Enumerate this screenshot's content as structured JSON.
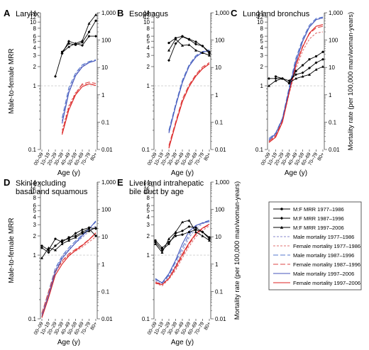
{
  "chart_data": [
    {
      "panel_letter": "A",
      "title": "Larynx",
      "type": "line",
      "xlabel": "Age (y)",
      "ylabel_left": "Male-to-female MRR",
      "ylabel_right": "",
      "x": [
        "00–09",
        "10–19",
        "20–29",
        "30–39",
        "40–49",
        "50–59",
        "60–69",
        "70–79",
        "80+"
      ],
      "mrr_series": [
        {
          "name": "M:F MRR 1977–1986",
          "values": [
            null,
            null,
            null,
            3.4,
            4.6,
            4.4,
            4.8,
            7.0,
            10.5
          ]
        },
        {
          "name": "M:F MRR 1987–1996",
          "values": [
            null,
            null,
            1.4,
            3.2,
            5.0,
            4.6,
            4.3,
            6.0,
            6.0
          ]
        },
        {
          "name": "M:F MRR 1997–2006",
          "values": [
            null,
            null,
            null,
            3.3,
            4.1,
            4.6,
            5.1,
            9.5,
            13.0
          ]
        }
      ],
      "mortality_series": [
        {
          "name": "Male mortality 1977–1986",
          "values": [
            null,
            null,
            null,
            0.11,
            1.4,
            5.5,
            11.5,
            15.5,
            17.5
          ]
        },
        {
          "name": "Female mortality 1977–1986",
          "values": [
            null,
            null,
            null,
            0.05,
            0.4,
            1.2,
            2.3,
            2.5,
            2.2
          ]
        },
        {
          "name": "Male mortality 1987–1996",
          "values": [
            null,
            null,
            null,
            0.14,
            1.8,
            6.2,
            12.5,
            16.5,
            19.0
          ]
        },
        {
          "name": "Female mortality 1987–1996",
          "values": [
            null,
            null,
            null,
            0.04,
            0.35,
            1.1,
            2.5,
            2.9,
            2.6
          ]
        },
        {
          "name": "Male mortality 1997–2006",
          "values": [
            null,
            null,
            null,
            0.09,
            1.2,
            5.0,
            10.5,
            15.0,
            18.0
          ]
        },
        {
          "name": "Female mortality 1997–2006",
          "values": [
            null,
            null,
            null,
            0.035,
            0.28,
            1.0,
            2.0,
            2.5,
            2.2
          ]
        }
      ]
    },
    {
      "panel_letter": "B",
      "title": "Esophagus",
      "type": "line",
      "xlabel": "Age (y)",
      "ylabel_left": "",
      "ylabel_right": "",
      "x": [
        "00–09",
        "10–19",
        "20–29",
        "30–39",
        "40–49",
        "50–59",
        "60–69",
        "70–79",
        "80+"
      ],
      "mrr_series": [
        {
          "name": "M:F MRR 1977–1986",
          "values": [
            null,
            null,
            4.7,
            5.6,
            6.0,
            5.4,
            4.9,
            4.2,
            3.2
          ]
        },
        {
          "name": "M:F MRR 1987–1996",
          "values": [
            null,
            null,
            2.5,
            4.6,
            5.9,
            5.3,
            4.5,
            4.2,
            3.4
          ]
        },
        {
          "name": "M:F MRR 1997–2006",
          "values": [
            null,
            null,
            3.6,
            5.4,
            4.3,
            4.4,
            3.6,
            3.3,
            3.0
          ]
        }
      ],
      "mortality_series": [
        {
          "name": "Male mortality 1977–1986",
          "values": [
            null,
            null,
            0.045,
            0.4,
            3.0,
            11.5,
            25.0,
            37.0,
            42.0
          ]
        },
        {
          "name": "Female mortality 1977–1986",
          "values": [
            null,
            null,
            0.012,
            0.09,
            0.6,
            2.1,
            5.0,
            9.5,
            14.0
          ]
        },
        {
          "name": "Male mortality 1987–1996",
          "values": [
            null,
            null,
            0.05,
            0.45,
            3.4,
            12.5,
            27.0,
            38.0,
            44.0
          ]
        },
        {
          "name": "Female mortality 1987–1996",
          "values": [
            null,
            null,
            0.014,
            0.1,
            0.7,
            2.3,
            5.5,
            10.5,
            15.0
          ]
        },
        {
          "name": "Male mortality 1997–2006",
          "values": [
            null,
            null,
            0.04,
            0.38,
            2.8,
            11.0,
            24.0,
            36.0,
            41.0
          ]
        },
        {
          "name": "Female mortality 1997–2006",
          "values": [
            null,
            null,
            0.011,
            0.085,
            0.55,
            2.0,
            4.8,
            9.0,
            13.5
          ]
        }
      ]
    },
    {
      "panel_letter": "C",
      "title": "Lung and bronchus",
      "type": "line",
      "xlabel": "Age (y)",
      "ylabel_left": "",
      "ylabel_right": "Mortality rate (per 100,000 man/woman-years)",
      "x": [
        "00–09",
        "10–19",
        "20–29",
        "30–39",
        "40–49",
        "50–59",
        "60–69",
        "70–79",
        "80+"
      ],
      "mrr_series": [
        {
          "name": "M:F MRR 1977–1986",
          "values": [
            null,
            1.4,
            1.3,
            1.1,
            1.7,
            2.1,
            2.6,
            2.9,
            3.4
          ]
        },
        {
          "name": "M:F MRR 1987–1996",
          "values": [
            1.3,
            1.3,
            1.3,
            1.2,
            1.5,
            1.6,
            1.9,
            2.3,
            2.6
          ]
        },
        {
          "name": "M:F MRR 1997–2006",
          "values": [
            1.0,
            1.2,
            1.3,
            1.1,
            1.3,
            1.4,
            1.5,
            1.8,
            2.0
          ]
        }
      ],
      "mortality_series": [
        {
          "name": "Male mortality 1977–1986",
          "values": [
            0.02,
            0.035,
            0.12,
            1.6,
            18,
            95,
            310,
            560,
            640
          ]
        },
        {
          "name": "Female mortality 1977–1986",
          "values": [
            0.018,
            0.03,
            0.1,
            1.1,
            9,
            40,
            110,
            180,
            200
          ]
        },
        {
          "name": "Male mortality 1987–1996",
          "values": [
            0.025,
            0.04,
            0.14,
            1.9,
            22,
            110,
            350,
            620,
            700
          ]
        },
        {
          "name": "Female mortality 1987–1996",
          "values": [
            0.02,
            0.032,
            0.11,
            1.3,
            13,
            60,
            170,
            280,
            320
          ]
        },
        {
          "name": "Male mortality 1997–2006",
          "values": [
            0.022,
            0.038,
            0.13,
            1.5,
            16,
            90,
            300,
            560,
            660
          ]
        },
        {
          "name": "Female mortality 1997–2006",
          "values": [
            0.018,
            0.028,
            0.1,
            1.2,
            12,
            55,
            180,
            320,
            370
          ]
        }
      ]
    },
    {
      "panel_letter": "D",
      "title": "Skin excluding basal and squamous",
      "type": "line",
      "xlabel": "Age (y)",
      "ylabel_left": "Male-to-female MRR",
      "ylabel_right": "",
      "x": [
        "00–09",
        "10–19",
        "20–29",
        "30–39",
        "40–49",
        "50–59",
        "60–69",
        "70–79",
        "80+"
      ],
      "mrr_series": [
        {
          "name": "M:F MRR 1977–1986",
          "values": [
            1.4,
            1.2,
            1.8,
            1.6,
            1.9,
            2.0,
            2.3,
            2.6,
            2.0
          ]
        },
        {
          "name": "M:F MRR 1987–1996",
          "values": [
            1.3,
            1.1,
            1.4,
            1.7,
            1.8,
            2.2,
            2.5,
            2.7,
            2.6
          ]
        },
        {
          "name": "M:F MRR 1997–2006",
          "values": [
            0.9,
            1.3,
            1.2,
            1.5,
            1.7,
            1.9,
            2.2,
            2.4,
            2.7
          ]
        }
      ],
      "mortality_series": [
        {
          "name": "Male mortality 1977–1986",
          "values": [
            0.012,
            0.08,
            0.6,
            1.8,
            3.5,
            6.0,
            9.5,
            16,
            25
          ]
        },
        {
          "name": "Female mortality 1977–1986",
          "values": [
            0.014,
            0.09,
            0.5,
            1.2,
            2.2,
            3.0,
            4.2,
            6.5,
            10
          ]
        },
        {
          "name": "Male mortality 1987–1996",
          "values": [
            0.015,
            0.1,
            0.7,
            2.0,
            4.0,
            7.0,
            12,
            20,
            35
          ]
        },
        {
          "name": "Female mortality 1987–1996",
          "values": [
            0.016,
            0.1,
            0.55,
            1.3,
            2.4,
            3.5,
            5.0,
            8.0,
            13
          ]
        },
        {
          "name": "Male mortality 1997–2006",
          "values": [
            0.012,
            0.07,
            0.5,
            1.6,
            3.2,
            6.0,
            11,
            19,
            38
          ]
        },
        {
          "name": "Female mortality 1997–2006",
          "values": [
            0.011,
            0.06,
            0.4,
            1.0,
            2.0,
            3.2,
            4.8,
            7.8,
            14
          ]
        }
      ]
    },
    {
      "panel_letter": "E",
      "title": "Liver and intrahepatic bile duct by age",
      "type": "line",
      "xlabel": "Age (y)",
      "ylabel_left": "",
      "ylabel_right": "Mortality rate (per 100,000 man/woman-years)",
      "x": [
        "00–09",
        "10–19",
        "20–29",
        "30–39",
        "40–49",
        "50–59",
        "60–69",
        "70–79",
        "80+"
      ],
      "mrr_series": [
        {
          "name": "M:F MRR 1977–1986",
          "values": [
            1.7,
            1.3,
            1.6,
            2.0,
            2.1,
            2.3,
            2.5,
            2.3,
            1.9
          ]
        },
        {
          "name": "M:F MRR 1987–1996",
          "values": [
            1.6,
            1.2,
            1.5,
            2.2,
            2.4,
            2.8,
            2.7,
            2.3,
            1.8
          ]
        },
        {
          "name": "M:F MRR 1997–2006",
          "values": [
            1.5,
            1.1,
            1.8,
            2.3,
            3.3,
            3.5,
            2.3,
            2.0,
            1.7
          ]
        }
      ],
      "mortality_series": [
        {
          "name": "Male mortality 1977–1986",
          "values": [
            0.25,
            0.18,
            0.35,
            0.9,
            3.0,
            9.5,
            20,
            30,
            38
          ]
        },
        {
          "name": "Female mortality 1977–1986",
          "values": [
            0.2,
            0.16,
            0.28,
            0.6,
            1.7,
            4.5,
            10,
            17,
            25
          ]
        },
        {
          "name": "Male mortality 1987–1996",
          "values": [
            0.3,
            0.2,
            0.4,
            1.2,
            4.0,
            12,
            24,
            33,
            40
          ]
        },
        {
          "name": "Female mortality 1987–1996",
          "values": [
            0.22,
            0.18,
            0.3,
            0.7,
            2.0,
            5.5,
            12,
            20,
            28
          ]
        },
        {
          "name": "Male mortality 1997–2006",
          "values": [
            0.28,
            0.21,
            0.45,
            1.4,
            5.5,
            16,
            26,
            32,
            36
          ]
        },
        {
          "name": "Female mortality 1997–2006",
          "values": [
            0.2,
            0.18,
            0.3,
            0.8,
            2.3,
            6.0,
            13,
            21,
            29
          ]
        }
      ]
    }
  ],
  "axes": {
    "left_ticks": [
      0.1,
      0.2,
      0.3,
      0.4,
      0.5,
      0.6,
      0.7,
      0.8,
      0.9,
      1,
      2,
      3,
      4,
      5,
      6,
      8,
      10,
      12,
      14
    ],
    "left_tick_labels": {
      "0.1": "0.1",
      "1": "1",
      "2": "2",
      "3": "3",
      "4": "4",
      "5": "5",
      "6": "6",
      "8": "8",
      "10": "10",
      "12": "12",
      "14": "14"
    },
    "right_ticks": [
      0.01,
      0.1,
      1,
      10,
      100,
      1000
    ],
    "right_tick_labels": [
      "0.01",
      "0.1",
      "1",
      "10",
      "100",
      "1,000"
    ],
    "scale": "log",
    "reference_line": 1
  },
  "legend": {
    "items": [
      {
        "label": "M:F MRR 1977–1986",
        "color": "#000000",
        "kind": "mrr",
        "marker": "circle"
      },
      {
        "label": "M:F MRR 1987–1996",
        "color": "#000000",
        "kind": "mrr",
        "marker": "diamond"
      },
      {
        "label": "M:F MRR 1997–2006",
        "color": "#000000",
        "kind": "mrr",
        "marker": "triangle"
      },
      {
        "label": "Male mortality 1977–1986",
        "color": "#8888cc",
        "kind": "male",
        "dash": "short"
      },
      {
        "label": "Female mortality 1977–1986",
        "color": "#e07070",
        "kind": "female",
        "dash": "short"
      },
      {
        "label": "Male mortality 1987–1996",
        "color": "#5577cc",
        "kind": "male",
        "dash": "long"
      },
      {
        "label": "Female mortality 1987–1996",
        "color": "#dd4444",
        "kind": "female",
        "dash": "long"
      },
      {
        "label": "Male mortality 1997–2006",
        "color": "#4455bb",
        "kind": "male",
        "dash": "solid"
      },
      {
        "label": "Female mortality 1997–2006",
        "color": "#dd2222",
        "kind": "female",
        "dash": "solid"
      }
    ]
  }
}
